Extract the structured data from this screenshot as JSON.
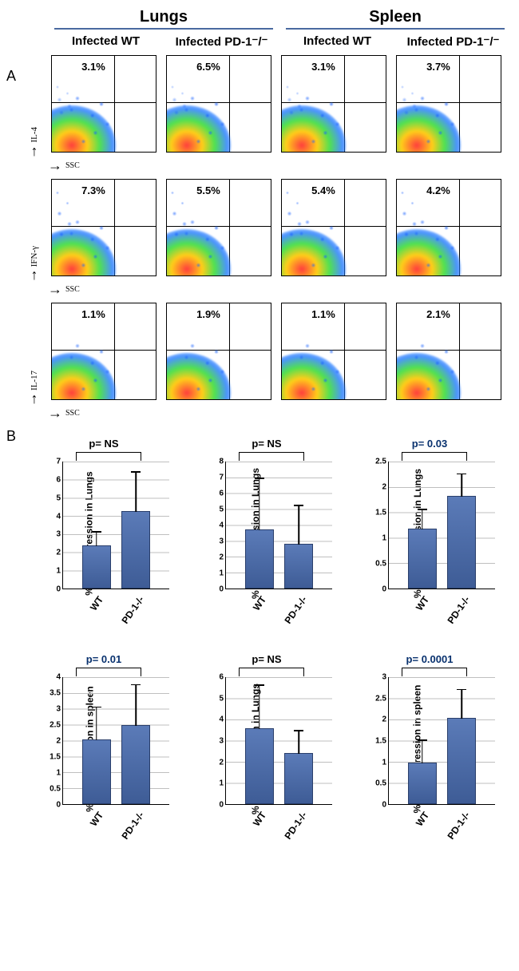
{
  "headers": {
    "lungs": "Lungs",
    "spleen": "Spleen",
    "infected_wt": "Infected WT",
    "infected_pd1": "Infected PD-1⁻/⁻"
  },
  "panelA": {
    "label": "A",
    "rows": [
      {
        "y_marker": "IL-4",
        "x_marker": "SSC",
        "pcts": [
          "3.1%",
          "6.5%",
          "3.1%",
          "3.7%"
        ],
        "spread": 0.5
      },
      {
        "y_marker": "IFN-γ",
        "x_marker": "SSC",
        "pcts": [
          "7.3%",
          "5.5%",
          "5.4%",
          "4.2%"
        ],
        "spread": 1.0
      },
      {
        "y_marker": "IL-17",
        "x_marker": "SSC",
        "pcts": [
          "1.1%",
          "1.9%",
          "1.1%",
          "2.1%"
        ],
        "spread": 0.2
      }
    ],
    "density_colors": {
      "core": "#ff2828",
      "mid1": "#ffc800",
      "mid2": "#32dc32",
      "edge": "#1e78ff"
    }
  },
  "panelB": {
    "label": "B",
    "x_categories": [
      "WT",
      "PD-1-/-"
    ],
    "bar_color": "#4a6aa5",
    "bar_border": "#2a3f6b",
    "grid_color": "#bfbfbf",
    "charts_row1": [
      {
        "ylabel": "% IL-4 expression in Lungs",
        "pval": "p= NS",
        "sig": false,
        "ymax": 7,
        "step": 1,
        "bars": [
          {
            "v": 2.3,
            "err": 0.8
          },
          {
            "v": 4.2,
            "err": 2.2
          }
        ]
      },
      {
        "ylabel": "% IFN-γ expression in Lungs",
        "pval": "p= NS",
        "sig": false,
        "ymax": 8,
        "step": 1,
        "bars": [
          {
            "v": 3.6,
            "err": 3.3
          },
          {
            "v": 2.7,
            "err": 2.5
          }
        ]
      },
      {
        "ylabel": "% IL-17 expression in Lungs",
        "pval": "p= 0.03",
        "sig": true,
        "ymax": 2.5,
        "step": 0.5,
        "bars": [
          {
            "v": 1.15,
            "err": 0.4
          },
          {
            "v": 1.8,
            "err": 0.45
          }
        ]
      }
    ],
    "charts_row2": [
      {
        "ylabel": "% IL-4 expression in spleen",
        "pval": "p= 0.01",
        "sig": true,
        "ymax": 4,
        "step": 0.5,
        "bars": [
          {
            "v": 2.0,
            "err": 1.05
          },
          {
            "v": 2.45,
            "err": 1.3
          }
        ]
      },
      {
        "ylabel": "% IFN-γ expression in Lungs",
        "pval": "p= NS",
        "sig": false,
        "ymax": 6,
        "step": 1,
        "bars": [
          {
            "v": 3.5,
            "err": 2.1
          },
          {
            "v": 2.35,
            "err": 1.1
          }
        ]
      },
      {
        "ylabel": "%IL-17 expression in spleen",
        "pval": "p= 0.0001",
        "sig": true,
        "ymax": 3,
        "step": 0.5,
        "bars": [
          {
            "v": 0.95,
            "err": 0.55
          },
          {
            "v": 2.0,
            "err": 0.7
          }
        ]
      }
    ]
  }
}
